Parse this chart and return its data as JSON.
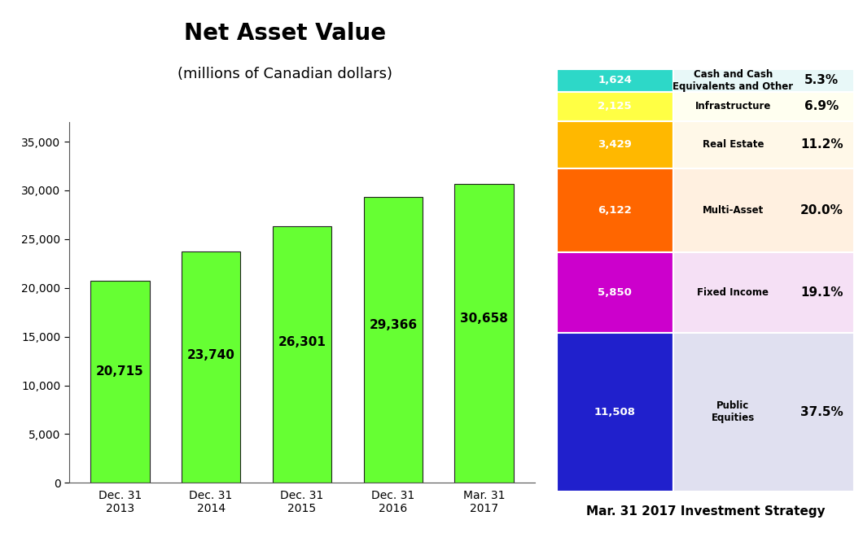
{
  "title": "Net Asset Value",
  "subtitle": "(millions of Canadian dollars)",
  "bar_categories": [
    "Dec. 31\n2013",
    "Dec. 31\n2014",
    "Dec. 31\n2015",
    "Dec. 31\n2016",
    "Mar. 31\n2017"
  ],
  "bar_values": [
    20715,
    23740,
    26301,
    29366,
    30658
  ],
  "bar_color": "#66FF33",
  "bar_edge_color": "#222222",
  "ylim": [
    0,
    37000
  ],
  "yticks": [
    0,
    5000,
    10000,
    15000,
    20000,
    25000,
    30000,
    35000
  ],
  "ytick_labels": [
    "0",
    "5,000",
    "10,000",
    "15,000",
    "20,000",
    "25,000",
    "30,000",
    "35,000"
  ],
  "strategy_title": "Mar. 31 2017 Investment Strategy",
  "strategy_items": [
    {
      "label": "Cash and Cash\nEquivalents and Other",
      "value": 1624,
      "pct": "5.3%",
      "bar_color": "#2DD8C8",
      "bg_color": "#E8F8F8"
    },
    {
      "label": "Infrastructure",
      "value": 2125,
      "pct": "6.9%",
      "bar_color": "#FFFF44",
      "bg_color": "#FFFFF0"
    },
    {
      "label": "Real Estate",
      "value": 3429,
      "pct": "11.2%",
      "bar_color": "#FFB800",
      "bg_color": "#FFF8E8"
    },
    {
      "label": "Multi-Asset",
      "value": 6122,
      "pct": "20.0%",
      "bar_color": "#FF6600",
      "bg_color": "#FFF0E0"
    },
    {
      "label": "Fixed Income",
      "value": 5850,
      "pct": "19.1%",
      "bar_color": "#CC00CC",
      "bg_color": "#F5E0F5"
    },
    {
      "label": "Public\nEquities",
      "value": 11508,
      "pct": "37.5%",
      "bar_color": "#2020CC",
      "bg_color": "#E0E0F0"
    }
  ]
}
